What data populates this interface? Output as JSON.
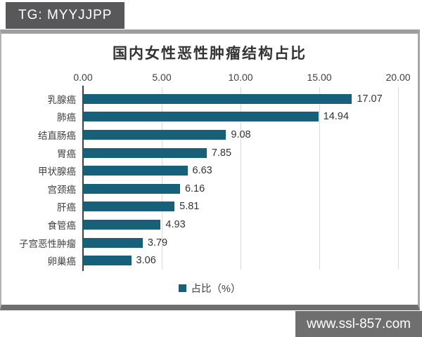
{
  "page": {
    "top_badge": "TG: MYYJJPP",
    "bottom_badge": "www.ssl-857.com"
  },
  "chart_data": {
    "type": "bar",
    "orientation": "horizontal",
    "title": "国内女性恶性肿瘤结构占比",
    "categories": [
      "乳腺癌",
      "肺癌",
      "结直肠癌",
      "胃癌",
      "甲状腺癌",
      "宫颈癌",
      "肝癌",
      "食管癌",
      "子宫恶性肿瘤",
      "卵巢癌"
    ],
    "values": [
      17.07,
      14.94,
      9.08,
      7.85,
      6.63,
      6.16,
      5.81,
      4.93,
      3.79,
      3.06
    ],
    "value_labels": [
      "17.07",
      "14.94",
      "9.08",
      "7.85",
      "6.63",
      "6.16",
      "5.81",
      "4.93",
      "3.79",
      "3.06"
    ],
    "xlabel": "",
    "ylabel": "",
    "xlim": [
      0,
      20
    ],
    "x_ticks": [
      "0.00",
      "5.00",
      "10.00",
      "15.00",
      "20.00"
    ],
    "grid": true,
    "legend": {
      "label": "占比（%）",
      "position": "bottom"
    }
  },
  "colors": {
    "bar": "#16607a",
    "badge_bg": "#58585a",
    "badge_text": "#ffffff",
    "gridline": "#d9d9d9",
    "axis_line": "#3f3f3f",
    "text": "#404040"
  }
}
